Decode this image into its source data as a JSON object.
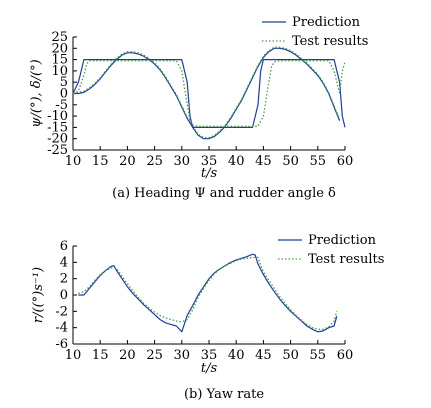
{
  "chart_data": [
    {
      "type": "line",
      "caption": "(a) Heading Ψ and rudder angle δ",
      "xlabel": "t/s",
      "ylabel": "ψ/(°), δ/(°)",
      "xlim": [
        10,
        60
      ],
      "ylim": [
        -25,
        25
      ],
      "xticks": [
        10,
        15,
        20,
        25,
        30,
        35,
        40,
        45,
        50,
        55,
        60
      ],
      "yticks": [
        25,
        20,
        15,
        10,
        5,
        0,
        -5,
        -10,
        -15,
        -20,
        -25
      ],
      "legend_position": "top-right",
      "series": [
        {
          "name": "Prediction",
          "kind": "heading",
          "color": "#1f3f9a",
          "dash": "solid",
          "x": [
            10,
            11,
            12,
            13,
            14,
            15,
            16,
            17,
            18,
            19,
            20,
            21,
            22,
            23,
            24,
            25,
            26,
            27,
            28,
            29,
            30,
            31,
            32,
            33,
            34,
            35,
            36,
            37,
            38,
            39,
            40,
            41,
            42,
            43,
            44,
            45,
            46,
            47,
            48,
            49,
            50,
            51,
            52,
            53,
            54,
            55,
            56,
            57,
            58,
            59
          ],
          "y": [
            0,
            0,
            0.5,
            2,
            4,
            6.5,
            9.5,
            12.5,
            15,
            17,
            18,
            18,
            17.5,
            16.5,
            15,
            13,
            10.5,
            7,
            3,
            -1,
            -6,
            -11,
            -15,
            -18.5,
            -20,
            -20,
            -19,
            -17,
            -14.5,
            -11,
            -7,
            -3,
            2,
            7,
            12,
            16,
            18.5,
            20,
            20,
            19.5,
            18.5,
            17,
            15,
            13,
            10.5,
            8,
            4.5,
            0,
            -6,
            -12
          ]
        },
        {
          "name": "Test results",
          "kind": "heading",
          "color": "#4a9a4a",
          "dash": "dotted",
          "x": [
            10,
            11,
            12,
            13,
            14,
            15,
            16,
            17,
            18,
            19,
            20,
            21,
            22,
            23,
            24,
            25,
            26,
            27,
            28,
            29,
            30,
            31,
            32,
            33,
            34,
            35,
            36,
            37,
            38,
            39,
            40,
            41,
            42,
            43,
            44,
            45,
            46,
            47,
            48,
            49,
            50,
            51,
            52,
            53,
            54,
            55,
            56,
            57,
            58,
            59
          ],
          "y": [
            0.5,
            0.5,
            1,
            2.5,
            4.5,
            7,
            10,
            13,
            15.5,
            17.5,
            18.5,
            18.5,
            18,
            17,
            15.5,
            13.5,
            11,
            7.5,
            3.5,
            -0.5,
            -5.5,
            -10.5,
            -14.5,
            -18,
            -19.5,
            -19.5,
            -18.5,
            -16.5,
            -14,
            -10.5,
            -6.5,
            -2.5,
            2.5,
            7.5,
            12.5,
            16.5,
            19,
            20.5,
            20.5,
            20,
            19,
            17.5,
            15.5,
            13.5,
            11,
            8.5,
            5,
            0.5,
            -5.5,
            -11.5
          ]
        },
        {
          "name": "",
          "kind": "rudder",
          "color": "#1f3f9a",
          "dash": "solid",
          "x": [
            10,
            11,
            11.5,
            12,
            30,
            31,
            31.5,
            32,
            43,
            44,
            44.5,
            45,
            58,
            59,
            59.5,
            60
          ],
          "y": [
            0,
            5,
            10,
            15,
            15,
            5,
            -10,
            -15,
            -15,
            -5,
            10,
            15,
            15,
            5,
            -10,
            -15
          ]
        },
        {
          "name": "",
          "kind": "rudder",
          "color": "#4a9a4a",
          "dash": "dotted",
          "x": [
            10,
            11,
            12,
            12.5,
            13,
            29,
            30,
            31,
            31.5,
            32,
            33,
            44,
            45,
            46,
            46.5,
            47,
            48,
            57,
            58,
            59,
            59.5,
            60
          ],
          "y": [
            0,
            1,
            8,
            13,
            14.5,
            14.5,
            10,
            -5,
            -12,
            -14,
            -14.5,
            -14.5,
            -10,
            5,
            12,
            14,
            14.5,
            14.5,
            10,
            0,
            10,
            14
          ]
        }
      ]
    },
    {
      "type": "line",
      "caption": "(b) Yaw rate",
      "xlabel": "t/s",
      "ylabel": "r/((°)s⁻¹)",
      "xlim": [
        10,
        60
      ],
      "ylim": [
        -6,
        6
      ],
      "xticks": [
        10,
        15,
        20,
        25,
        30,
        35,
        40,
        45,
        50,
        55,
        60
      ],
      "yticks": [
        6,
        4,
        2,
        0,
        -2,
        -4,
        -6
      ],
      "legend_position": "top-right",
      "series": [
        {
          "name": "Prediction",
          "color": "#1f3f9a",
          "dash": "solid",
          "x": [
            11,
            12,
            13,
            14,
            15,
            16,
            17,
            17.5,
            18,
            19,
            20,
            21,
            22,
            23,
            24,
            25,
            26,
            27,
            28,
            29,
            30,
            31,
            32,
            33,
            34,
            35,
            36,
            37,
            38,
            39,
            40,
            41,
            42,
            43,
            43.5,
            44,
            45,
            46,
            47,
            48,
            49,
            50,
            51,
            52,
            53,
            54,
            55,
            56,
            57,
            58,
            58.5
          ],
          "y": [
            0,
            0,
            0.8,
            1.6,
            2.4,
            3,
            3.5,
            3.6,
            3,
            2,
            1,
            0.2,
            -0.5,
            -1.2,
            -1.8,
            -2.4,
            -3,
            -3.4,
            -3.6,
            -3.8,
            -4.5,
            -2.5,
            -1.3,
            0,
            1,
            2,
            2.7,
            3.2,
            3.6,
            4,
            4.3,
            4.5,
            4.7,
            5,
            4.9,
            3.8,
            2.5,
            1.4,
            0.4,
            -0.5,
            -1.3,
            -2,
            -2.6,
            -3.2,
            -3.8,
            -4.2,
            -4.5,
            -4.4,
            -4,
            -3.8,
            -2.6
          ]
        },
        {
          "name": "Test results",
          "color": "#4a9a4a",
          "dash": "dotted",
          "x": [
            11,
            12,
            13,
            14,
            15,
            16,
            17,
            18,
            18.5,
            19,
            20,
            21,
            22,
            23,
            24,
            25,
            26,
            27,
            28,
            29,
            30,
            31,
            32,
            33,
            34,
            35,
            36,
            37,
            38,
            39,
            40,
            41,
            42,
            43,
            44,
            44.5,
            45,
            46,
            47,
            48,
            49,
            50,
            51,
            52,
            53,
            54,
            55,
            56,
            57,
            58,
            58.5
          ],
          "y": [
            0.2,
            0.4,
            1,
            1.8,
            2.5,
            3,
            3.3,
            3.3,
            2.8,
            2.3,
            1.4,
            0.5,
            -0.3,
            -1,
            -1.6,
            -2.1,
            -2.5,
            -2.8,
            -3,
            -3.2,
            -3.3,
            -3,
            -1.8,
            -0.3,
            0.8,
            1.8,
            2.6,
            3.2,
            3.6,
            3.9,
            4.2,
            4.4,
            4.5,
            4.6,
            4.6,
            3.6,
            2.8,
            1.8,
            0.8,
            -0.2,
            -1,
            -1.8,
            -2.5,
            -3.1,
            -3.6,
            -4,
            -4.2,
            -4.2,
            -3.9,
            -3.2,
            -2
          ]
        }
      ]
    }
  ]
}
